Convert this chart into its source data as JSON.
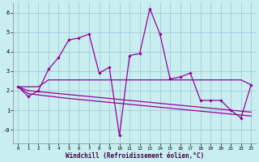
{
  "xlabel": "Windchill (Refroidissement éolien,°C)",
  "bg_color": "#c8eef0",
  "line_color": "#990099",
  "grid_color": "#aaccdd",
  "x_values": [
    0,
    1,
    2,
    3,
    4,
    5,
    6,
    7,
    8,
    9,
    10,
    11,
    12,
    13,
    14,
    15,
    16,
    17,
    18,
    19,
    20,
    21,
    22,
    23
  ],
  "main_line": [
    2.2,
    1.7,
    2.0,
    3.1,
    3.7,
    4.6,
    4.7,
    4.9,
    2.9,
    3.2,
    -0.3,
    3.8,
    3.9,
    6.2,
    4.9,
    2.6,
    2.7,
    2.9,
    1.5,
    1.5,
    1.5,
    1.0,
    0.6,
    2.3
  ],
  "line2": [
    2.2,
    2.2,
    2.2,
    2.55,
    2.55,
    2.55,
    2.55,
    2.55,
    2.55,
    2.55,
    2.55,
    2.55,
    2.55,
    2.55,
    2.55,
    2.55,
    2.55,
    2.55,
    2.55,
    2.55,
    2.55,
    2.55,
    2.55,
    2.3
  ],
  "line3": [
    2.2,
    2.0,
    1.95,
    1.9,
    1.85,
    1.8,
    1.75,
    1.7,
    1.65,
    1.6,
    1.55,
    1.5,
    1.45,
    1.4,
    1.35,
    1.3,
    1.25,
    1.2,
    1.15,
    1.1,
    1.05,
    1.0,
    0.95,
    0.9
  ],
  "line4": [
    2.2,
    1.85,
    1.78,
    1.72,
    1.66,
    1.6,
    1.55,
    1.5,
    1.45,
    1.4,
    1.35,
    1.3,
    1.25,
    1.2,
    1.15,
    1.1,
    1.05,
    1.0,
    0.95,
    0.9,
    0.85,
    0.8,
    0.75,
    0.7
  ],
  "ylim": [
    -0.7,
    6.5
  ],
  "xlim": [
    -0.5,
    23.5
  ],
  "yticks": [
    0,
    1,
    2,
    3,
    4,
    5,
    6
  ],
  "ytick_labels": [
    "-0",
    "1",
    "2",
    "3",
    "4",
    "5",
    "6"
  ],
  "xticks": [
    0,
    1,
    2,
    3,
    4,
    5,
    6,
    7,
    8,
    9,
    10,
    11,
    12,
    13,
    14,
    15,
    16,
    17,
    18,
    19,
    20,
    21,
    22,
    23
  ]
}
